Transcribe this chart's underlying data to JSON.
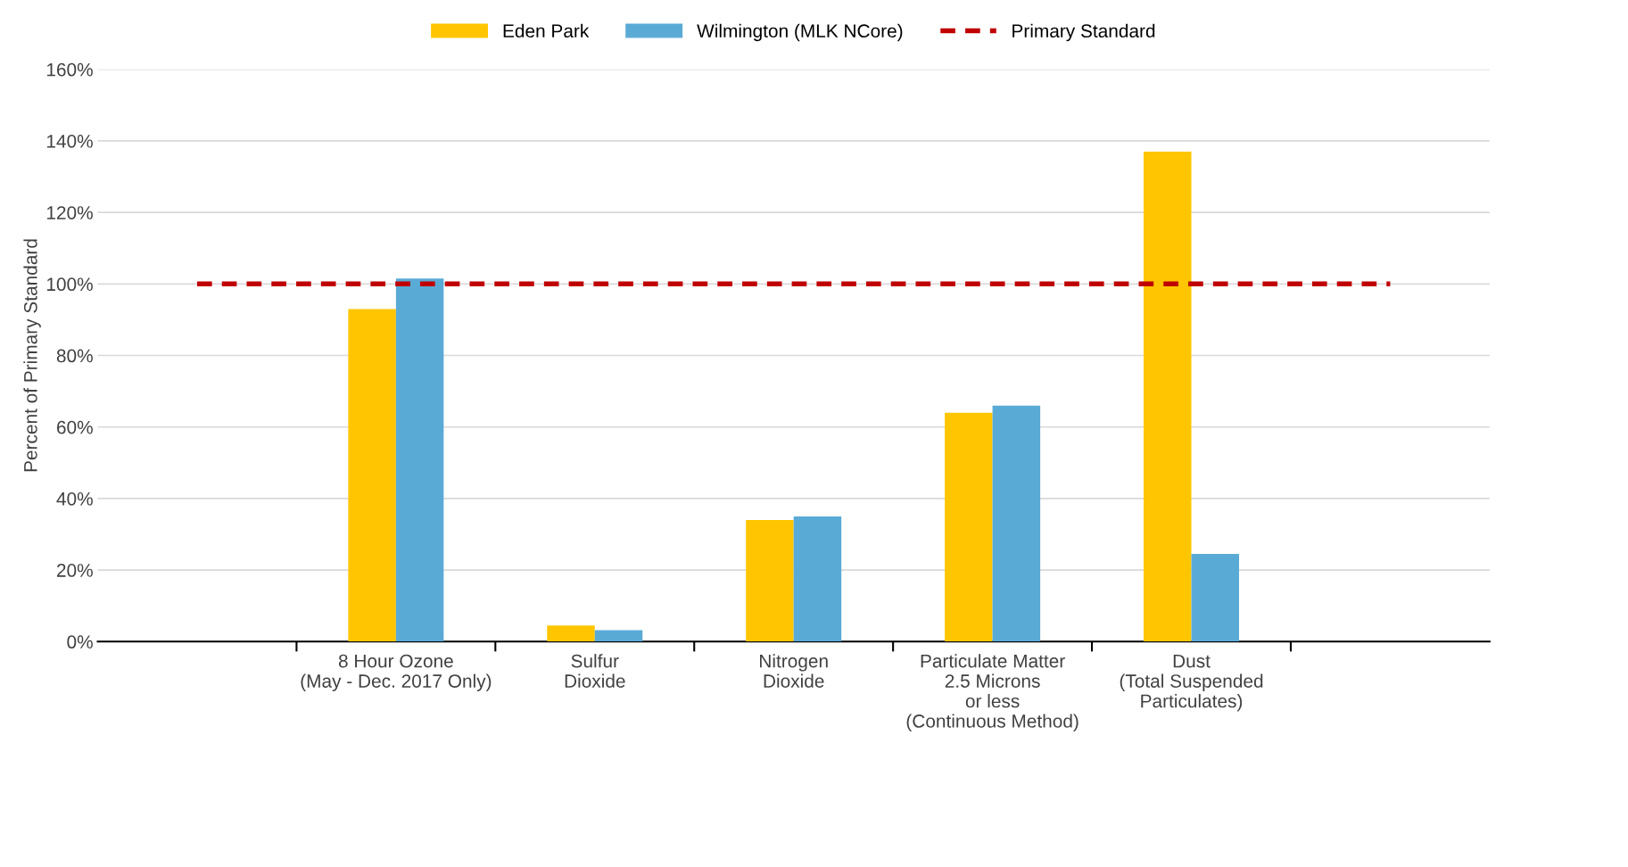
{
  "chart_data": {
    "type": "bar",
    "ylabel": "Percent of Primary Standard",
    "categories": [
      null,
      "8 Hour Ozone\n(May - Dec. 2017 Only)",
      "Sulfur\nDioxide",
      "Nitrogen\nDioxide",
      "Particulate Matter\n2.5 Microns\nor less\n(Continuous Method)",
      "Dust\n(Total Suspended\nParticulates)",
      null
    ],
    "series": [
      {
        "name": "Eden Park",
        "color": "#ffc600",
        "values": [
          null,
          93,
          4.5,
          34,
          64,
          137,
          null
        ]
      },
      {
        "name": "Wilmington (MLK NCore)",
        "color": "#5aaad6",
        "values": [
          null,
          101.5,
          3.2,
          35,
          66,
          24.5,
          null
        ]
      }
    ],
    "ylim": [
      0,
      160
    ],
    "yticks": [
      {
        "value": 0,
        "label": "0%"
      },
      {
        "value": 20,
        "label": "20%"
      },
      {
        "value": 40,
        "label": "40%"
      },
      {
        "value": 60,
        "label": "60%"
      },
      {
        "value": 80,
        "label": "80%"
      },
      {
        "value": 100,
        "label": "100%"
      },
      {
        "value": 120,
        "label": "120%"
      },
      {
        "value": 140,
        "label": "140%"
      },
      {
        "value": 160,
        "label": "160%"
      }
    ],
    "ref_lines": [
      {
        "axis": "y",
        "value": 100,
        "label": "Primary Standard",
        "color": "#c00000",
        "line_style": "dashed"
      }
    ],
    "grid": "y",
    "legend": "top"
  }
}
